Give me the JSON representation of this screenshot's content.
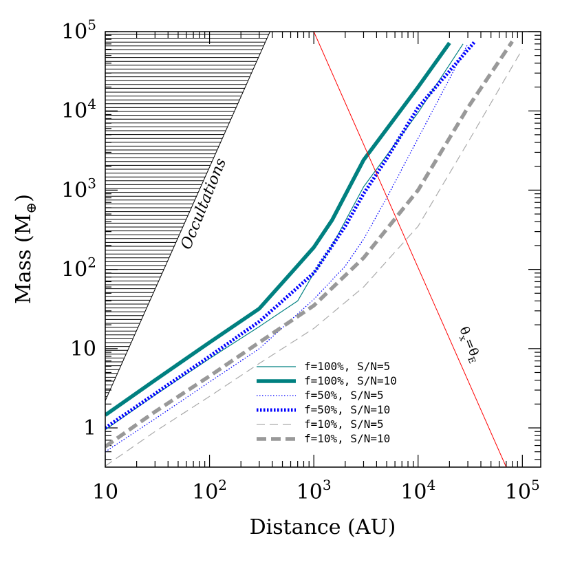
{
  "chart_data": {
    "type": "line",
    "xlabel": "Distance (AU)",
    "ylabel": "Mass (M⊕)",
    "xscale": "log",
    "yscale": "log",
    "xlim": [
      10,
      150000
    ],
    "ylim": [
      0.32,
      100000
    ],
    "x_tick_labels": [
      {
        "value": 10,
        "base": "10",
        "exp": ""
      },
      {
        "value": 100,
        "base": "10",
        "exp": "2"
      },
      {
        "value": 1000,
        "base": "10",
        "exp": "3"
      },
      {
        "value": 10000,
        "base": "10",
        "exp": "4"
      },
      {
        "value": 100000,
        "base": "10",
        "exp": "5"
      }
    ],
    "y_tick_labels": [
      {
        "value": 1,
        "base": "1",
        "exp": ""
      },
      {
        "value": 10,
        "base": "10",
        "exp": ""
      },
      {
        "value": 100,
        "base": "10",
        "exp": "2"
      },
      {
        "value": 1000,
        "base": "10",
        "exp": "3"
      },
      {
        "value": 10000,
        "base": "10",
        "exp": "4"
      },
      {
        "value": 100000,
        "base": "10",
        "exp": "5"
      }
    ],
    "grid": false,
    "legend_position": "bottom-center",
    "series": [
      {
        "name": "f=100%, S/N=5",
        "color": "#008080",
        "style": "thin-solid",
        "x": [
          10,
          30,
          100,
          300,
          700,
          1000,
          1500,
          3000,
          10000,
          27000
        ],
        "y": [
          0.95,
          2.6,
          7.5,
          19,
          40,
          90,
          200,
          1100,
          9500,
          70000
        ]
      },
      {
        "name": "f=100%, S/N=10",
        "color": "#008080",
        "style": "thick-solid",
        "x": [
          10,
          30,
          100,
          300,
          650,
          1000,
          1500,
          3000,
          10000,
          20000
        ],
        "y": [
          1.45,
          4,
          12,
          32,
          100,
          190,
          420,
          2400,
          20000,
          72000
        ]
      },
      {
        "name": "f=50%, S/N=5",
        "color": "#0000ff",
        "style": "thin-dotted",
        "x": [
          10,
          30,
          100,
          300,
          1000,
          2000,
          3000,
          5000,
          10000,
          30000
        ],
        "y": [
          0.5,
          1.3,
          3.8,
          10,
          42,
          110,
          240,
          800,
          4500,
          70000
        ]
      },
      {
        "name": "f=50%, S/N=10",
        "color": "#0000ff",
        "style": "thick-dotted",
        "x": [
          10,
          30,
          100,
          300,
          1000,
          2000,
          3000,
          5000,
          10000,
          35000
        ],
        "y": [
          1,
          2.7,
          8,
          22,
          90,
          350,
          900,
          2500,
          11000,
          75000
        ]
      },
      {
        "name": "f=10%, S/N=5",
        "color": "#aaaaaa",
        "style": "thin-dashed",
        "x": [
          10,
          30,
          100,
          300,
          1000,
          3000,
          10000,
          30000,
          100000
        ],
        "y": [
          0.33,
          0.9,
          2.5,
          6.5,
          18,
          60,
          350,
          4000,
          60000
        ]
      },
      {
        "name": "f=10%, S/N=10",
        "color": "#999999",
        "style": "thick-dashed",
        "x": [
          10,
          30,
          100,
          300,
          1000,
          3000,
          10000,
          30000,
          80000
        ],
        "y": [
          0.58,
          1.6,
          4.5,
          12,
          35,
          140,
          1000,
          11000,
          75000
        ]
      }
    ],
    "reference_lines": [
      {
        "label": "θₓ=θᴇ",
        "color": "#ff0000",
        "x": [
          1000,
          70000
        ],
        "y": [
          100000,
          0.32
        ]
      },
      {
        "label": "Occultations",
        "color": "#000000",
        "x": [
          10,
          380
        ],
        "y": [
          2.2,
          100000
        ]
      }
    ],
    "annotations": {
      "occultations": "Occultations",
      "theta_x": "θ",
      "theta_x_sub": "x",
      "theta_eq": "=θ",
      "theta_e_sub": "E"
    }
  }
}
